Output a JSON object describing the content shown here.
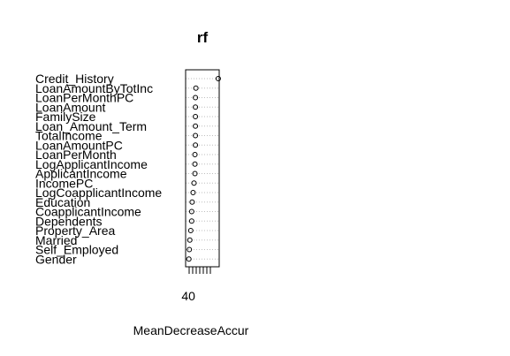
{
  "chart_data": {
    "type": "scatter",
    "title": "rf",
    "xlabel": "MeanDecreaseAccur",
    "x_tick_labels": [
      "40"
    ],
    "xlim": [
      37,
      73
    ],
    "grid": true,
    "legend": "none",
    "colors": {
      "points": "#000000",
      "grid": "#bebebe",
      "frame": "#000000",
      "text": "#000000"
    },
    "categories": [
      "Credit_History",
      "LoanAmountByTotInc",
      "LoanPerMonthPC",
      "LoanAmount",
      "FamilySize",
      "Loan_Amount_Term",
      "TotalIncome",
      "LoanAmountPC",
      "LoanPerMonth",
      "LogApplicantIncome",
      "ApplicantIncome",
      "IncomePC",
      "LogCoapplicantIncome",
      "Education",
      "CoapplicantIncome",
      "Dependents",
      "Property_Area",
      "Married",
      "Self_Employed",
      "Gender"
    ],
    "values": [
      72,
      48,
      47.5,
      47.5,
      47.5,
      47.5,
      47.5,
      47.5,
      47,
      47,
      47,
      46,
      45,
      44,
      43.5,
      43.5,
      42.5,
      41.5,
      41,
      40.5
    ]
  }
}
